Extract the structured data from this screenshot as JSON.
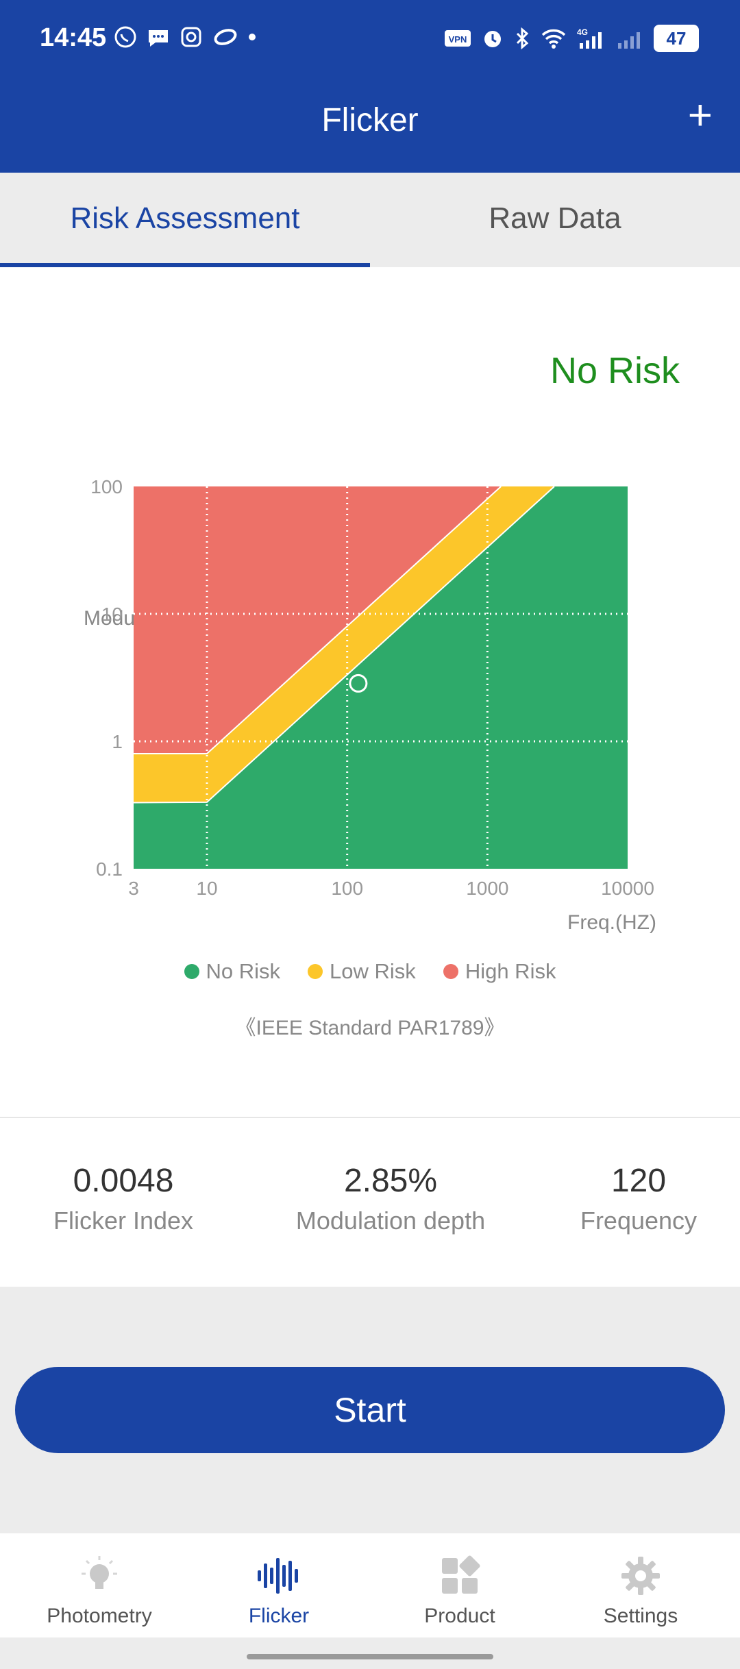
{
  "status": {
    "time": "14:45",
    "battery": "47",
    "network": "4G"
  },
  "appbar": {
    "title": "Flicker",
    "add_icon": "plus-icon"
  },
  "tabs": [
    {
      "label": "Risk Assessment",
      "active": true
    },
    {
      "label": "Raw Data",
      "active": false
    }
  ],
  "risk": {
    "label": "No Risk"
  },
  "chart_data": {
    "type": "scatter",
    "ylabel": "Modulation(%)",
    "xlabel": "Freq.(HZ)",
    "x_scale": "log",
    "y_scale": "log",
    "xlim": [
      3,
      10000
    ],
    "ylim": [
      0.1,
      100
    ],
    "x_ticks": [
      "3",
      "10",
      "100",
      "1000",
      "10000"
    ],
    "y_ticks": [
      "100",
      "10",
      "1",
      "0.1"
    ],
    "grid": true,
    "regions": [
      {
        "name": "No Risk",
        "color": "#2eaa6a"
      },
      {
        "name": "Low Risk",
        "color": "#fcc62a"
      },
      {
        "name": "High Risk",
        "color": "#ed7168"
      }
    ],
    "point": {
      "x": 120,
      "y": 2.85
    },
    "legend_position": "bottom"
  },
  "legend": [
    {
      "label": "No Risk",
      "color": "#2eaa6a"
    },
    {
      "label": "Low Risk",
      "color": "#fcc62a"
    },
    {
      "label": "High Risk",
      "color": "#ed7168"
    }
  ],
  "standard": "《IEEE Standard PAR1789》",
  "metrics": [
    {
      "value": "0.0048",
      "label": "Flicker Index"
    },
    {
      "value": "2.85%",
      "label": "Modulation depth"
    },
    {
      "value": "120",
      "label": "Frequency"
    }
  ],
  "start_button": {
    "label": "Start"
  },
  "nav": [
    {
      "label": "Photometry",
      "icon": "bulb-icon",
      "active": false
    },
    {
      "label": "Flicker",
      "icon": "waveform-icon",
      "active": true
    },
    {
      "label": "Product",
      "icon": "grid-icon",
      "active": false
    },
    {
      "label": "Settings",
      "icon": "gear-icon",
      "active": false
    }
  ],
  "colors": {
    "primary": "#1a44a4",
    "no_risk_text": "#1e8e1e"
  }
}
